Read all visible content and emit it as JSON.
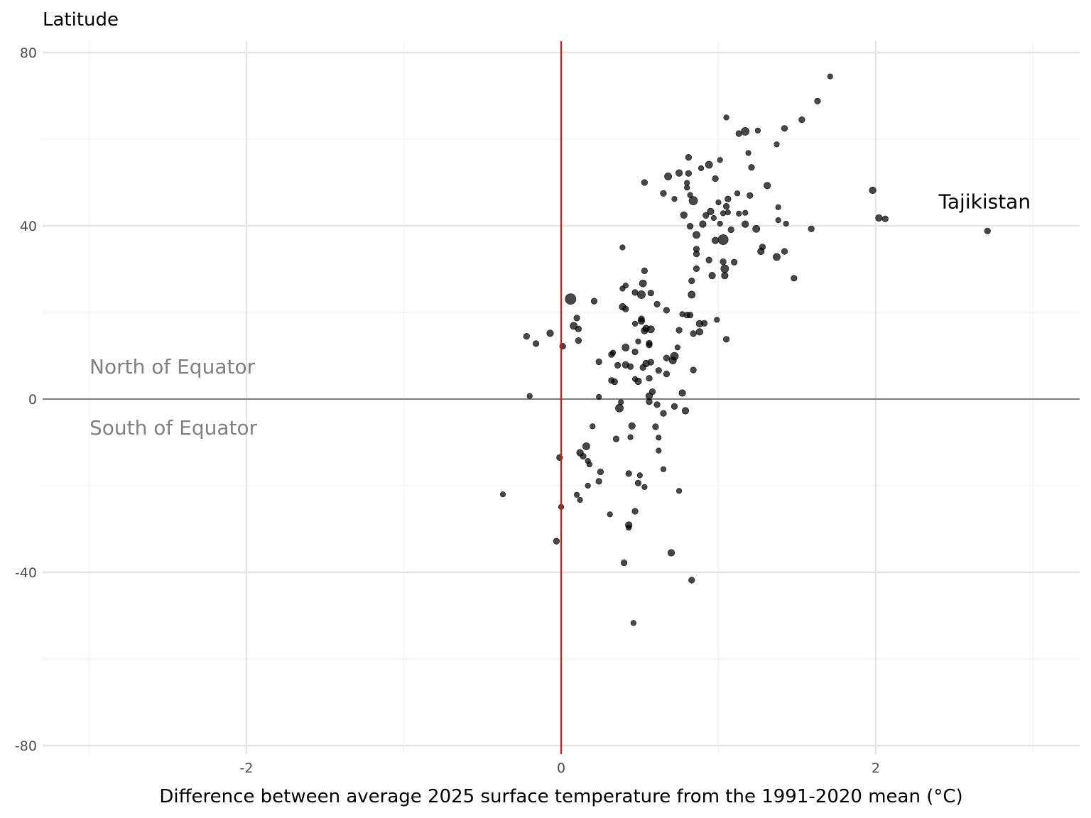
{
  "chart_data": {
    "type": "scatter",
    "xlabel": "Difference between average 2025 surface temperature from the 1991-2020 mean (°C)",
    "ylabel": "Latitude",
    "xlim": [
      -3.3,
      3.3
    ],
    "ylim": [
      -82,
      83
    ],
    "x_ticks": [
      -2,
      0,
      2
    ],
    "x_tick_labels": [
      "-2",
      "0",
      "2"
    ],
    "y_ticks": [
      -80,
      -40,
      0,
      40,
      80
    ],
    "y_tick_labels": [
      "-80",
      "-40",
      "0",
      "40",
      "80"
    ],
    "grid": true,
    "reference_lines": {
      "vertical_x": 0,
      "vertical_color": "#d7191c",
      "horizontal_y": 0,
      "horizontal_color": "#7f7f7f"
    },
    "hemisphere_labels": {
      "north": "North of Equator",
      "south": "South of Equator"
    },
    "annotation": {
      "text": "Tajikistan",
      "x": 2.71,
      "y": 38.8
    },
    "point_color": "#000000",
    "point_opacity": 0.72,
    "size_note": "point size varies; values are relative (1 = smallest)",
    "points": [
      {
        "x": 1.71,
        "y": 74.5,
        "s": 1
      },
      {
        "x": 1.63,
        "y": 68.8,
        "s": 1.3
      },
      {
        "x": 1.53,
        "y": 64.5,
        "s": 1.3
      },
      {
        "x": 1.42,
        "y": 62.5,
        "s": 1.3
      },
      {
        "x": 1.25,
        "y": 62,
        "s": 1
      },
      {
        "x": 1.17,
        "y": 61.8,
        "s": 2.2
      },
      {
        "x": 1.13,
        "y": 61.3,
        "s": 1.3
      },
      {
        "x": 1.05,
        "y": 65,
        "s": 1
      },
      {
        "x": 1.37,
        "y": 58.8,
        "s": 1
      },
      {
        "x": 1.19,
        "y": 56.8,
        "s": 1
      },
      {
        "x": 1.21,
        "y": 53.5,
        "s": 1.3
      },
      {
        "x": 0.81,
        "y": 55.8,
        "s": 1.3
      },
      {
        "x": 1.01,
        "y": 55.2,
        "s": 1
      },
      {
        "x": 0.94,
        "y": 54.1,
        "s": 1.8
      },
      {
        "x": 0.89,
        "y": 53.3,
        "s": 1
      },
      {
        "x": 0.75,
        "y": 52.2,
        "s": 1.6
      },
      {
        "x": 0.68,
        "y": 51.4,
        "s": 1.8
      },
      {
        "x": 0.81,
        "y": 52.1,
        "s": 1.3
      },
      {
        "x": 0.98,
        "y": 50.9,
        "s": 1.3
      },
      {
        "x": 0.53,
        "y": 50,
        "s": 1.3
      },
      {
        "x": 0.8,
        "y": 49.9,
        "s": 1
      },
      {
        "x": 0.8,
        "y": 48.8,
        "s": 1
      },
      {
        "x": 1.31,
        "y": 49.3,
        "s": 1.6
      },
      {
        "x": 0.65,
        "y": 47.5,
        "s": 1.3
      },
      {
        "x": 0.82,
        "y": 47.1,
        "s": 1
      },
      {
        "x": 1.12,
        "y": 47.5,
        "s": 1
      },
      {
        "x": 1.2,
        "y": 47,
        "s": 1.3
      },
      {
        "x": 0.72,
        "y": 46.2,
        "s": 1
      },
      {
        "x": 0.84,
        "y": 45.8,
        "s": 2.6
      },
      {
        "x": 1.06,
        "y": 46.2,
        "s": 1.3
      },
      {
        "x": 1.0,
        "y": 45.4,
        "s": 1
      },
      {
        "x": 1.05,
        "y": 44.5,
        "s": 1.3
      },
      {
        "x": 1.38,
        "y": 44.3,
        "s": 1
      },
      {
        "x": 0.95,
        "y": 43.3,
        "s": 1.6
      },
      {
        "x": 1.06,
        "y": 43.1,
        "s": 1
      },
      {
        "x": 1.03,
        "y": 42.9,
        "s": 1
      },
      {
        "x": 1.13,
        "y": 42.8,
        "s": 1
      },
      {
        "x": 1.17,
        "y": 43,
        "s": 1
      },
      {
        "x": 0.78,
        "y": 42.5,
        "s": 1.6
      },
      {
        "x": 0.92,
        "y": 42.4,
        "s": 1.3
      },
      {
        "x": 0.97,
        "y": 41.8,
        "s": 1
      },
      {
        "x": 1.38,
        "y": 41.3,
        "s": 1
      },
      {
        "x": 1.43,
        "y": 40.5,
        "s": 1
      },
      {
        "x": 1.17,
        "y": 40.4,
        "s": 1.6
      },
      {
        "x": 0.9,
        "y": 40.4,
        "s": 1.6
      },
      {
        "x": 0.82,
        "y": 39.9,
        "s": 1.3
      },
      {
        "x": 1.01,
        "y": 40.5,
        "s": 1
      },
      {
        "x": 1.08,
        "y": 39.1,
        "s": 1.3
      },
      {
        "x": 1.24,
        "y": 39.3,
        "s": 1.8
      },
      {
        "x": 1.59,
        "y": 39.3,
        "s": 1.3
      },
      {
        "x": 2.02,
        "y": 41.8,
        "s": 1.6
      },
      {
        "x": 2.06,
        "y": 41.6,
        "s": 1.3
      },
      {
        "x": 1.98,
        "y": 48.2,
        "s": 1.6
      },
      {
        "x": 2.71,
        "y": 38.8,
        "s": 1.3
      },
      {
        "x": 0.86,
        "y": 37.9,
        "s": 1.8
      },
      {
        "x": 1.03,
        "y": 36.8,
        "s": 3.6
      },
      {
        "x": 0.98,
        "y": 36.6,
        "s": 1.6
      },
      {
        "x": 1.28,
        "y": 35.1,
        "s": 1.3
      },
      {
        "x": 0.39,
        "y": 35,
        "s": 1
      },
      {
        "x": 0.86,
        "y": 34.6,
        "s": 1.3
      },
      {
        "x": 1.27,
        "y": 34.1,
        "s": 1.6
      },
      {
        "x": 1.42,
        "y": 34.1,
        "s": 1.3
      },
      {
        "x": 0.86,
        "y": 33.5,
        "s": 1.3
      },
      {
        "x": 1.37,
        "y": 32.8,
        "s": 1.8
      },
      {
        "x": 0.94,
        "y": 32.1,
        "s": 1.3
      },
      {
        "x": 1.03,
        "y": 31.7,
        "s": 1.3
      },
      {
        "x": 1.1,
        "y": 31.6,
        "s": 1.3
      },
      {
        "x": 1.04,
        "y": 30.1,
        "s": 2.2
      },
      {
        "x": 0.86,
        "y": 30.1,
        "s": 1.3
      },
      {
        "x": 0.53,
        "y": 29.6,
        "s": 1.3
      },
      {
        "x": 0.96,
        "y": 28.5,
        "s": 1.6
      },
      {
        "x": 1.04,
        "y": 28.5,
        "s": 1.6
      },
      {
        "x": 1.48,
        "y": 27.9,
        "s": 1.3
      },
      {
        "x": 0.83,
        "y": 27.3,
        "s": 1.3
      },
      {
        "x": 0.52,
        "y": 26.7,
        "s": 1.8
      },
      {
        "x": 0.41,
        "y": 26.2,
        "s": 1
      },
      {
        "x": 0.39,
        "y": 25.5,
        "s": 1
      },
      {
        "x": 0.47,
        "y": 24.6,
        "s": 1.3
      },
      {
        "x": 0.51,
        "y": 24.1,
        "s": 2.2
      },
      {
        "x": 0.57,
        "y": 24.5,
        "s": 1.3
      },
      {
        "x": 0.83,
        "y": 24.1,
        "s": 1.8
      },
      {
        "x": 0.06,
        "y": 23.1,
        "s": 4.0
      },
      {
        "x": 0.21,
        "y": 22.6,
        "s": 1.3
      },
      {
        "x": 0.61,
        "y": 21.9,
        "s": 1.3
      },
      {
        "x": 0.39,
        "y": 21.3,
        "s": 1.6
      },
      {
        "x": 0.41,
        "y": 20.8,
        "s": 1.3
      },
      {
        "x": 0.67,
        "y": 20.5,
        "s": 1.3
      },
      {
        "x": 0.77,
        "y": 19.6,
        "s": 1
      },
      {
        "x": 0.8,
        "y": 19.4,
        "s": 1.3
      },
      {
        "x": 0.82,
        "y": 19.4,
        "s": 1.3
      },
      {
        "x": 0.1,
        "y": 18.7,
        "s": 1.3
      },
      {
        "x": 0.51,
        "y": 18.5,
        "s": 1.3
      },
      {
        "x": 0.99,
        "y": 18.3,
        "s": 1
      },
      {
        "x": 0.51,
        "y": 18,
        "s": 1.6
      },
      {
        "x": 0.47,
        "y": 17.4,
        "s": 1
      },
      {
        "x": 0.88,
        "y": 17.4,
        "s": 1.6
      },
      {
        "x": 0.91,
        "y": 17.5,
        "s": 1.3
      },
      {
        "x": 0.08,
        "y": 16.9,
        "s": 1.8
      },
      {
        "x": 0.11,
        "y": 16.2,
        "s": 1.3
      },
      {
        "x": 0.54,
        "y": 16.3,
        "s": 1.6
      },
      {
        "x": 0.57,
        "y": 16.1,
        "s": 1.8
      },
      {
        "x": 0.53,
        "y": 15.8,
        "s": 1.6
      },
      {
        "x": 0.75,
        "y": 15.9,
        "s": 1.3
      },
      {
        "x": 0.88,
        "y": 15.5,
        "s": 1.6
      },
      {
        "x": -0.07,
        "y": 15.2,
        "s": 1.6
      },
      {
        "x": 0.84,
        "y": 15.1,
        "s": 1.3
      },
      {
        "x": -0.22,
        "y": 14.5,
        "s": 1.3
      },
      {
        "x": 0.11,
        "y": 13.5,
        "s": 1.3
      },
      {
        "x": 0.49,
        "y": 13.3,
        "s": 1
      },
      {
        "x": 1.05,
        "y": 13.8,
        "s": 1.3
      },
      {
        "x": -0.16,
        "y": 12.8,
        "s": 1.3
      },
      {
        "x": 0.56,
        "y": 12.9,
        "s": 1.3
      },
      {
        "x": 0.56,
        "y": 12.5,
        "s": 1.3
      },
      {
        "x": 0.01,
        "y": 12.2,
        "s": 1.3
      },
      {
        "x": 0.41,
        "y": 11.9,
        "s": 1.8
      },
      {
        "x": 0.74,
        "y": 11.9,
        "s": 1
      },
      {
        "x": 0.47,
        "y": 10.9,
        "s": 1.3
      },
      {
        "x": 0.33,
        "y": 10.7,
        "s": 1
      },
      {
        "x": 0.32,
        "y": 10.3,
        "s": 1.3
      },
      {
        "x": 0.72,
        "y": 9.9,
        "s": 2.2
      },
      {
        "x": 0.67,
        "y": 9.5,
        "s": 1.3
      },
      {
        "x": 0.71,
        "y": 8.9,
        "s": 1.8
      },
      {
        "x": 0.24,
        "y": 8.6,
        "s": 1.3
      },
      {
        "x": 0.57,
        "y": 8.5,
        "s": 1.3
      },
      {
        "x": 0.54,
        "y": 8.2,
        "s": 1.6
      },
      {
        "x": 0.36,
        "y": 7.8,
        "s": 1.3
      },
      {
        "x": 0.41,
        "y": 7.9,
        "s": 1.6
      },
      {
        "x": 0.44,
        "y": 7.5,
        "s": 1.3
      },
      {
        "x": 0.52,
        "y": 7.3,
        "s": 1.3
      },
      {
        "x": 0.84,
        "y": 6.7,
        "s": 1.3
      },
      {
        "x": 0.62,
        "y": 6.6,
        "s": 1.3
      },
      {
        "x": 0.67,
        "y": 5.8,
        "s": 1.3
      },
      {
        "x": 0.56,
        "y": 4.8,
        "s": 1.3
      },
      {
        "x": 0.47,
        "y": 4.6,
        "s": 1
      },
      {
        "x": 0.32,
        "y": 4.3,
        "s": 1.3
      },
      {
        "x": 0.34,
        "y": 4.0,
        "s": 1.3
      },
      {
        "x": 0.49,
        "y": 4.1,
        "s": 1.6
      },
      {
        "x": 0.58,
        "y": 1.7,
        "s": 1.3
      },
      {
        "x": 0.77,
        "y": 1.4,
        "s": 1.6
      },
      {
        "x": 0.56,
        "y": 0.7,
        "s": 1.6
      },
      {
        "x": -0.2,
        "y": 0.7,
        "s": 1
      },
      {
        "x": 0.24,
        "y": 0.5,
        "s": 1
      },
      {
        "x": 0.38,
        "y": -0.7,
        "s": 1
      },
      {
        "x": 0.56,
        "y": -0.6,
        "s": 1.3
      },
      {
        "x": 0.61,
        "y": -1.3,
        "s": 1.3
      },
      {
        "x": 0.37,
        "y": -2.1,
        "s": 2.2
      },
      {
        "x": 0.72,
        "y": -1.7,
        "s": 1.3
      },
      {
        "x": 0.79,
        "y": -2.7,
        "s": 1.6
      },
      {
        "x": 0.65,
        "y": -3.3,
        "s": 1.3
      },
      {
        "x": 0.45,
        "y": -6.2,
        "s": 1.6
      },
      {
        "x": 0.2,
        "y": -6.3,
        "s": 1
      },
      {
        "x": 0.6,
        "y": -6.4,
        "s": 1.3
      },
      {
        "x": 0.62,
        "y": -8.9,
        "s": 1
      },
      {
        "x": 0.35,
        "y": -9.2,
        "s": 1.3
      },
      {
        "x": 0.44,
        "y": -8.8,
        "s": 1
      },
      {
        "x": 0.16,
        "y": -10.9,
        "s": 1.8
      },
      {
        "x": 0.62,
        "y": -11.9,
        "s": 1
      },
      {
        "x": 0.12,
        "y": -12.4,
        "s": 1.6
      },
      {
        "x": -0.01,
        "y": -13.5,
        "s": 1.3
      },
      {
        "x": 0.14,
        "y": -13.2,
        "s": 1.3
      },
      {
        "x": 0.17,
        "y": -14.3,
        "s": 1
      },
      {
        "x": 0.18,
        "y": -15.1,
        "s": 1
      },
      {
        "x": 0.65,
        "y": -16.2,
        "s": 1
      },
      {
        "x": 0.25,
        "y": -16.8,
        "s": 1.3
      },
      {
        "x": 0.43,
        "y": -17.2,
        "s": 1.3
      },
      {
        "x": 0.5,
        "y": -17.6,
        "s": 1
      },
      {
        "x": 0.24,
        "y": -19.0,
        "s": 1.3
      },
      {
        "x": 0.49,
        "y": -19.4,
        "s": 1.3
      },
      {
        "x": 0.17,
        "y": -20.0,
        "s": 1
      },
      {
        "x": 0.53,
        "y": -20.3,
        "s": 1
      },
      {
        "x": 0.75,
        "y": -21.2,
        "s": 1
      },
      {
        "x": -0.37,
        "y": -22.0,
        "s": 1
      },
      {
        "x": 0.1,
        "y": -22.1,
        "s": 1
      },
      {
        "x": 0.12,
        "y": -23.3,
        "s": 1
      },
      {
        "x": 0.0,
        "y": -24.9,
        "s": 1
      },
      {
        "x": 0.47,
        "y": -25.9,
        "s": 1.3
      },
      {
        "x": 0.31,
        "y": -26.6,
        "s": 1
      },
      {
        "x": 0.43,
        "y": -29.1,
        "s": 1.6
      },
      {
        "x": 0.43,
        "y": -29.7,
        "s": 1
      },
      {
        "x": -0.03,
        "y": -32.8,
        "s": 1.3
      },
      {
        "x": 0.7,
        "y": -35.5,
        "s": 1.6
      },
      {
        "x": 0.4,
        "y": -37.8,
        "s": 1.3
      },
      {
        "x": 0.83,
        "y": -41.8,
        "s": 1.3
      },
      {
        "x": 0.46,
        "y": -51.7,
        "s": 1
      }
    ]
  }
}
